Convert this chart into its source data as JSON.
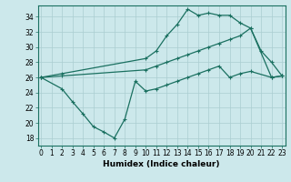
{
  "line1": {
    "x": [
      0,
      2,
      10,
      11,
      12,
      13,
      14,
      15,
      16,
      17,
      18,
      19,
      20,
      21,
      22,
      23
    ],
    "y": [
      26,
      26.5,
      28.5,
      29.5,
      31.5,
      33.0,
      35.0,
      34.2,
      34.5,
      34.2,
      34.2,
      33.2,
      32.5,
      29.5,
      28.0,
      26.2
    ]
  },
  "line2": {
    "x": [
      0,
      2,
      10,
      11,
      12,
      13,
      14,
      15,
      16,
      17,
      18,
      19,
      20,
      22,
      23
    ],
    "y": [
      26,
      26.2,
      27.0,
      27.5,
      28.0,
      28.5,
      29.0,
      29.5,
      30.0,
      30.5,
      31.0,
      31.5,
      32.5,
      26.0,
      26.2
    ]
  },
  "line3": {
    "x": [
      0,
      2,
      3,
      4,
      5,
      6,
      7,
      8,
      9,
      10,
      11,
      12,
      13,
      14,
      15,
      16,
      17,
      18,
      19,
      20,
      22,
      23
    ],
    "y": [
      26,
      24.5,
      22.8,
      21.2,
      19.5,
      18.8,
      18.0,
      20.5,
      25.5,
      24.2,
      24.5,
      25.0,
      25.5,
      26.0,
      26.5,
      27.0,
      27.5,
      26.0,
      26.5,
      26.8,
      26.0,
      26.2
    ]
  },
  "xlabel": "Humidex (Indice chaleur)",
  "xticks": [
    0,
    1,
    2,
    3,
    4,
    5,
    6,
    7,
    8,
    9,
    10,
    11,
    12,
    13,
    14,
    15,
    16,
    17,
    18,
    19,
    20,
    21,
    22,
    23
  ],
  "yticks": [
    18,
    20,
    22,
    24,
    26,
    28,
    30,
    32,
    34
  ],
  "xlim": [
    -0.3,
    23.3
  ],
  "ylim": [
    17.0,
    35.5
  ],
  "bg_color": "#cce8eb",
  "grid_color": "#aacdd1",
  "line_color": "#1a7060",
  "tick_fontsize": 5.5,
  "label_fontsize": 6.5
}
